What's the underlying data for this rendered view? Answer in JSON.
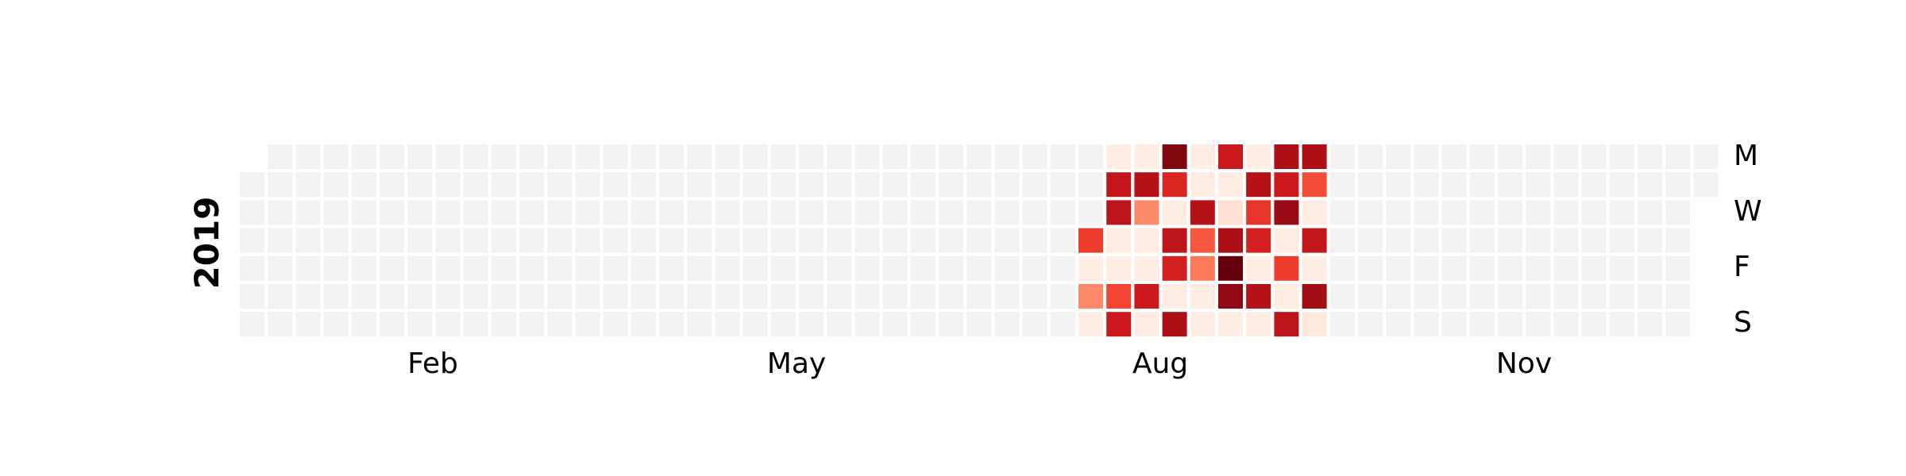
{
  "chart_data": {
    "type": "heatmap",
    "year_label": "2019",
    "month_labels": [
      "Feb",
      "May",
      "Aug",
      "Nov"
    ],
    "weekday_labels": [
      "M",
      "W",
      "F",
      "S"
    ],
    "empty_color": "#f2f2f2",
    "colormap": "Reds",
    "columns": [
      {
        "week": 30,
        "values": [
          null,
          null,
          null,
          0.62,
          0.05,
          0.4,
          0.05
        ]
      },
      {
        "week": 31,
        "values": [
          0.05,
          0.78,
          0.8,
          0.05,
          0.05,
          0.6,
          0.75
        ]
      },
      {
        "week": 32,
        "values": [
          0.05,
          0.82,
          0.4,
          0.05,
          0.05,
          0.75,
          0.05
        ]
      },
      {
        "week": 33,
        "values": [
          0.95,
          0.7,
          0.05,
          0.8,
          0.72,
          0.05,
          0.85
        ]
      },
      {
        "week": 34,
        "values": [
          0.05,
          0.05,
          0.82,
          0.55,
          0.45,
          0.05,
          0.05
        ]
      },
      {
        "week": 35,
        "values": [
          0.75,
          0.05,
          0.12,
          0.85,
          1.0,
          0.92,
          0.05
        ]
      },
      {
        "week": 36,
        "values": [
          0.05,
          0.82,
          0.65,
          0.72,
          0.05,
          0.82,
          0.05
        ]
      },
      {
        "week": 37,
        "values": [
          0.85,
          0.75,
          0.9,
          0.05,
          0.62,
          0.05,
          0.8
        ]
      },
      {
        "week": 38,
        "values": [
          0.85,
          0.58,
          0.05,
          0.78,
          0.05,
          0.88,
          0.08
        ]
      }
    ]
  }
}
